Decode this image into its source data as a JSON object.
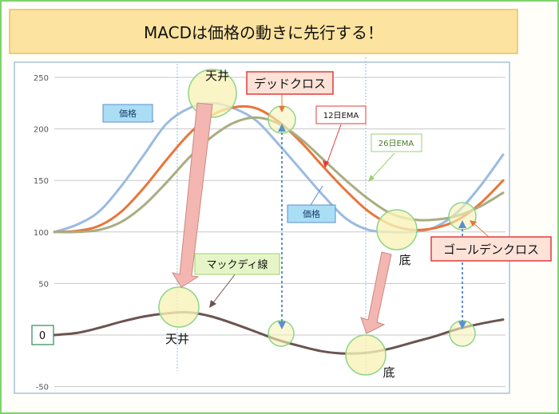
{
  "title": "MACDは価格の動きに先行する！",
  "colors": {
    "price": "#9bbbe0",
    "ema12": "#e8763a",
    "ema26": "#a9ad80",
    "macd": "#6b5450",
    "circle_fill": "#f7f3b8",
    "circle_stroke": "#8ed48a",
    "arrow_fill": "#f3b6b0",
    "arrow_stroke": "#c98a86",
    "guide": "#5b8fd0",
    "title_bg": "#fce3a0",
    "plot_border": "#8fb3d9"
  },
  "labels": {
    "top_peak": "天井",
    "dead_cross": "デッドクロス",
    "price_top": "価格",
    "ema12": "12日EMA",
    "ema26": "26日EMA",
    "price_bottom": "価格",
    "bottom_label": "底",
    "golden_cross": "ゴールデンクロス",
    "macd_line": "マックディ線",
    "macd_peak": "天井",
    "macd_bottom": "底",
    "zero_box": "0"
  },
  "chart_data": {
    "type": "line",
    "ylim": [
      -50,
      250
    ],
    "yticks": [
      "250",
      "200",
      "150",
      "100",
      "50",
      "-50"
    ],
    "x": [
      0,
      5,
      10,
      15,
      20,
      25,
      30,
      35,
      40,
      45,
      50,
      55,
      60,
      65,
      70,
      75,
      80,
      85,
      90,
      95,
      100
    ],
    "series": [
      {
        "name": "価格",
        "values": [
          100,
          107,
          120,
          145,
          175,
          205,
          220,
          225,
          220,
          208,
          185,
          160,
          135,
          113,
          102,
          100,
          100,
          105,
          120,
          145,
          175
        ]
      },
      {
        "name": "12日EMA",
        "values": [
          100,
          101,
          106,
          120,
          143,
          170,
          195,
          213,
          221,
          220,
          207,
          187,
          163,
          140,
          120,
          107,
          102,
          104,
          112,
          128,
          150
        ]
      },
      {
        "name": "26日EMA",
        "values": [
          100,
          100,
          102,
          110,
          126,
          148,
          172,
          192,
          206,
          211,
          205,
          190,
          170,
          150,
          132,
          118,
          112,
          112,
          116,
          125,
          138
        ]
      },
      {
        "name": "マックディ線",
        "values": [
          0,
          2,
          7,
          13,
          18,
          21,
          22,
          18,
          11,
          3,
          -5,
          -11,
          -16,
          -18,
          -17,
          -13,
          -7,
          -1,
          6,
          11,
          15
        ]
      }
    ]
  }
}
